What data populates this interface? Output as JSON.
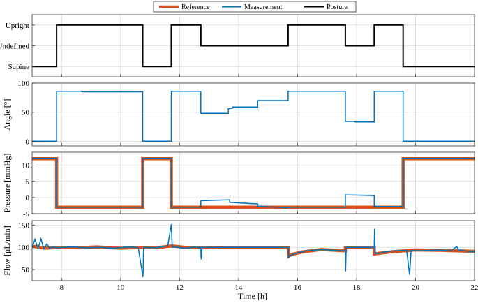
{
  "chart_data": {
    "type": "line",
    "xlabel": "Time [h]",
    "xlim": [
      7,
      22
    ],
    "xticks": [
      8,
      10,
      12,
      14,
      16,
      18,
      20,
      22
    ],
    "legend": {
      "placement": "top",
      "entries": [
        {
          "name": "Reference",
          "color": "#d95319"
        },
        {
          "name": "Measurement",
          "color": "#0072bd"
        },
        {
          "name": "Posture",
          "color": "#000000"
        }
      ]
    },
    "panels": [
      {
        "id": "posture",
        "ylabel": "",
        "ylim": [
          -0.5,
          2.5
        ],
        "yticks": [
          0,
          1,
          2
        ],
        "yticklabels": [
          "Supine",
          "Undefined",
          "Upright"
        ],
        "series": [
          {
            "name": "Posture",
            "color": "#000000",
            "x": [
              7,
              7.83,
              7.83,
              10.75,
              10.75,
              11.72,
              11.72,
              12.72,
              12.72,
              15.68,
              15.68,
              17.62,
              17.62,
              18.6,
              18.6,
              19.58,
              19.58,
              22
            ],
            "y": [
              0,
              0,
              2,
              2,
              0,
              0,
              2,
              2,
              1,
              1,
              2,
              2,
              1,
              1,
              2,
              2,
              0,
              0
            ]
          }
        ]
      },
      {
        "id": "angle",
        "ylabel": "Angle [°]",
        "ylim": [
          -8,
          100
        ],
        "yticks": [
          0,
          50,
          100
        ],
        "series": [
          {
            "name": "Measurement",
            "color": "#0072bd",
            "x": [
              7,
              7.83,
              7.83,
              8.7,
              8.7,
              10.75,
              10.75,
              11.72,
              11.72,
              12.7,
              12.72,
              12.72,
              13.65,
              13.65,
              13.8,
              13.8,
              14.65,
              14.65,
              15.68,
              15.68,
              17.62,
              17.62,
              17.95,
              17.95,
              18.6,
              18.6,
              19.58,
              19.58,
              22
            ],
            "y": [
              0,
              0,
              86,
              86,
              85,
              85,
              0,
              0,
              86,
              86,
              85,
              48,
              48,
              56,
              57,
              59,
              59,
              70,
              70,
              86,
              86,
              34,
              34,
              33,
              33,
              86,
              86,
              0,
              0
            ]
          }
        ]
      },
      {
        "id": "pressure",
        "ylabel": "Pressure [mmHg]",
        "ylim": [
          -5,
          14
        ],
        "yticks": [
          -5,
          0,
          5,
          10
        ],
        "series": [
          {
            "name": "Reference",
            "color": "#d95319",
            "x": [
              7,
              7.83,
              7.83,
              10.75,
              10.75,
              11.72,
              11.72,
              12.72,
              12.72,
              15.68,
              15.68,
              17.62,
              17.62,
              18.6,
              18.6,
              19.58,
              19.58,
              22
            ],
            "y": [
              12,
              12,
              -3,
              -3,
              12,
              12,
              -3,
              -3,
              -3,
              -3,
              -3,
              -3,
              -3,
              -3,
              -3,
              -3,
              12,
              12
            ]
          },
          {
            "name": "Measurement",
            "color": "#0072bd",
            "x": [
              7,
              7.83,
              7.83,
              10.75,
              10.75,
              11.72,
              11.72,
              12.72,
              12.72,
              13.7,
              13.7,
              14.65,
              14.65,
              15.68,
              15.68,
              17.62,
              17.62,
              18.6,
              18.6,
              19.58,
              19.58,
              22
            ],
            "y": [
              12,
              12,
              -3,
              -3,
              12,
              12,
              -3,
              -3,
              -1,
              -0.7,
              -1.5,
              -2,
              -2.7,
              -3.2,
              -3,
              -3,
              0.8,
              0.6,
              -2.8,
              -2.8,
              12,
              12
            ]
          }
        ]
      },
      {
        "id": "flow",
        "ylabel": "Flow [μL/min]",
        "ylim": [
          25,
          160
        ],
        "yticks": [
          50,
          100,
          150
        ],
        "series": [
          {
            "name": "Reference",
            "color": "#d95319",
            "x": [
              7,
              7.2,
              7.5,
              7.83,
              8.5,
              9.2,
              10,
              10.75,
              11.2,
              11.72,
              12.2,
              12.72,
              13.5,
              14.5,
              15.68,
              15.7,
              15.8,
              16.2,
              16.8,
              17.62,
              17.62,
              18.6,
              18.6,
              18.7,
              19.2,
              20,
              21,
              22
            ],
            "y": [
              103,
              100,
              98,
              100,
              99,
              101,
              98,
              100,
              99,
              103,
              100,
              99,
              100,
              100,
              100,
              80,
              84,
              90,
              95,
              92,
              100,
              100,
              85,
              86,
              90,
              94,
              93,
              91
            ]
          },
          {
            "name": "Measurement",
            "color": "#0072bd",
            "x": [
              7,
              7.1,
              7.2,
              7.3,
              7.4,
              7.5,
              7.6,
              7.7,
              7.8,
              8.1,
              8.4,
              8.8,
              9.3,
              9.8,
              10.3,
              10.6,
              10.76,
              10.78,
              10.8,
              11.2,
              11.6,
              11.72,
              11.75,
              11.8,
              12.2,
              12.5,
              12.72,
              12.73,
              12.76,
              13.5,
              14.2,
              14.7,
              15.2,
              15.68,
              15.7,
              15.72,
              15.9,
              16.3,
              16.8,
              17.3,
              17.62,
              17.63,
              17.65,
              17.7,
              18.1,
              18.6,
              18.61,
              18.63,
              18.65,
              18.7,
              19.1,
              19.5,
              19.7,
              19.8,
              19.85,
              20.2,
              20.8,
              21.2,
              21.4,
              21.45,
              21.8,
              22
            ],
            "y": [
              100,
              118,
              97,
              119,
              96,
              108,
              97,
              101,
              99,
              100,
              101,
              99,
              100,
              98,
              101,
              99,
              33,
              99,
              100,
              99,
              103,
              152,
              100,
              101,
              98,
              101,
              99,
              73,
              100,
              100,
              100,
              100,
              100,
              100,
              76,
              80,
              86,
              92,
              95,
              93,
              92,
              46,
              100,
              100,
              100,
              100,
              142,
              84,
              88,
              86,
              91,
              93,
              93,
              38,
              93,
              92,
              94,
              92,
              102,
              94,
              91,
              90
            ]
          }
        ]
      }
    ]
  }
}
